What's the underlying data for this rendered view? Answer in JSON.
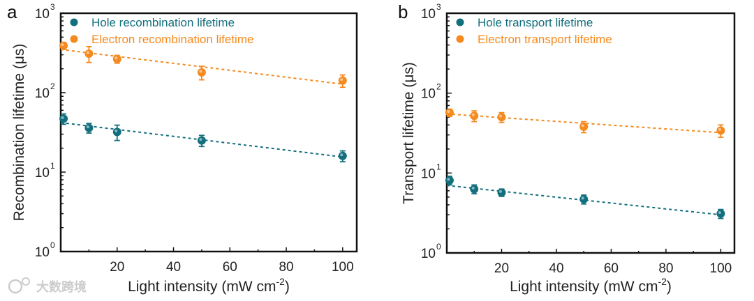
{
  "watermark": "大数跨境",
  "colors": {
    "hole": "#126f7d",
    "electron": "#f58a1f"
  },
  "chart_data": [
    {
      "type": "scatter",
      "panel_label": "a",
      "xlabel": "Light intensity (mW cm",
      "xlabel_sup": "-2",
      "xlabel_end": ")",
      "ylabel": "Recombination lifetime (μs)",
      "xlim": [
        0,
        105
      ],
      "ylim": [
        1,
        1000
      ],
      "yscale": "log",
      "xticks": [
        20,
        40,
        60,
        80,
        100
      ],
      "yticks": [
        {
          "base": "10",
          "exp": "0",
          "value": 1
        },
        {
          "base": "10",
          "exp": "1",
          "value": 10
        },
        {
          "base": "10",
          "exp": "2",
          "value": 100
        },
        {
          "base": "10",
          "exp": "3",
          "value": 1000
        }
      ],
      "legend_position": "top-left",
      "series": [
        {
          "name": "Hole recombination lifetime",
          "color_key": "hole",
          "x": [
            1,
            10,
            20,
            50,
            100
          ],
          "y": [
            47,
            36,
            32,
            25,
            16
          ],
          "err": [
            7,
            5,
            7,
            4,
            2.5
          ],
          "fit": [
            42,
            15.5
          ]
        },
        {
          "name": "Electron recombination lifetime",
          "color_key": "electron",
          "x": [
            1,
            10,
            20,
            50,
            100
          ],
          "y": [
            390,
            310,
            265,
            180,
            142
          ],
          "err": [
            40,
            70,
            30,
            35,
            25
          ],
          "fit": [
            350,
            128
          ]
        }
      ]
    },
    {
      "type": "scatter",
      "panel_label": "b",
      "xlabel": "Light intensity (mW cm",
      "xlabel_sup": "-2",
      "xlabel_end": ")",
      "ylabel": "Transport lifetime (μs)",
      "xlim": [
        0,
        105
      ],
      "ylim": [
        1,
        1000
      ],
      "yscale": "log",
      "xticks": [
        20,
        40,
        60,
        80,
        100
      ],
      "yticks": [
        {
          "base": "10",
          "exp": "0",
          "value": 1
        },
        {
          "base": "10",
          "exp": "1",
          "value": 10
        },
        {
          "base": "10",
          "exp": "2",
          "value": 100
        },
        {
          "base": "10",
          "exp": "3",
          "value": 1000
        }
      ],
      "legend_position": "top-left",
      "series": [
        {
          "name": "Hole transport lifetime",
          "color_key": "hole",
          "x": [
            1,
            10,
            20,
            50,
            100
          ],
          "y": [
            8.1,
            6.3,
            5.7,
            4.7,
            3.1
          ],
          "err": [
            1,
            0.8,
            0.6,
            0.6,
            0.4
          ],
          "fit": [
            7,
            3
          ]
        },
        {
          "name": "Electron transport lifetime",
          "color_key": "electron",
          "x": [
            1,
            10,
            20,
            50,
            100
          ],
          "y": [
            57,
            52,
            50,
            38,
            34
          ],
          "err": [
            6,
            8,
            7,
            6,
            6
          ],
          "fit": [
            55,
            32
          ]
        }
      ]
    }
  ]
}
